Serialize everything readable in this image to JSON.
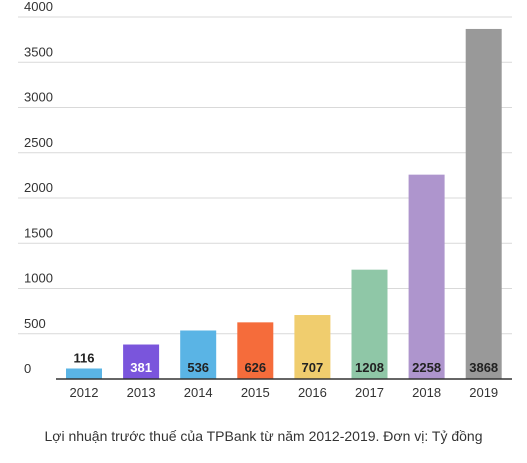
{
  "chart_data": {
    "type": "bar",
    "categories": [
      "2012",
      "2013",
      "2014",
      "2015",
      "2016",
      "2017",
      "2018",
      "2019"
    ],
    "values": [
      116,
      381,
      536,
      626,
      707,
      1208,
      2258,
      3868
    ],
    "colors": [
      "#5ab4e5",
      "#7a55dc",
      "#5ab4e5",
      "#f56c3b",
      "#f0cd6e",
      "#8fc7a7",
      "#ae95cd",
      "#999999"
    ],
    "label_colors": [
      "#222222",
      "#ffffff",
      "#222222",
      "#222222",
      "#222222",
      "#222222",
      "#222222",
      "#222222"
    ],
    "yticks": [
      0,
      500,
      1000,
      1500,
      2000,
      2500,
      3000,
      3500,
      4000
    ],
    "ylim": [
      0,
      4000
    ],
    "grid": true,
    "caption": "Lợi nhuận trước thuế của TPBank từ năm 2012-2019. Đơn vị: Tỷ đồng"
  }
}
